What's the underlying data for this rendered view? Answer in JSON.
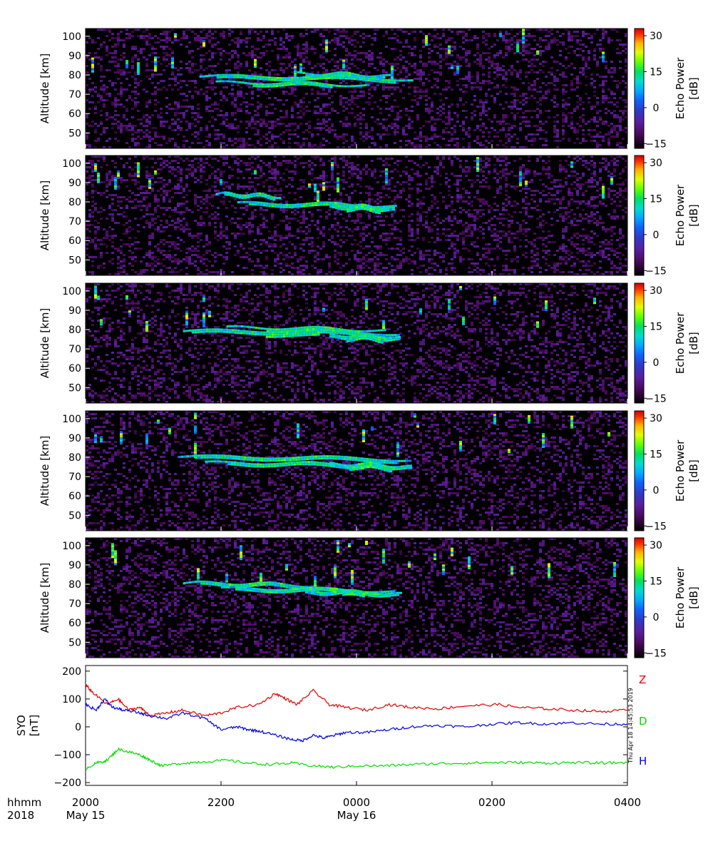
{
  "chart_data": [
    {
      "type": "heatmap",
      "panel": 1,
      "ylabel": "Altitude [km]",
      "ylim": [
        42,
        104
      ],
      "yticks": [
        50,
        60,
        70,
        80,
        90,
        100
      ],
      "colorbar": {
        "label_line1": "Echo Power",
        "label_line2": "[dB]",
        "range": [
          -17,
          33
        ],
        "ticks": [
          -15,
          0,
          15,
          30
        ]
      },
      "echo_layers": [
        {
          "start": 0.21,
          "end": 0.6,
          "altitude": 79,
          "thickness": 2.0
        },
        {
          "start": 0.24,
          "end": 0.52,
          "altitude": 76,
          "thickness": 1.5
        },
        {
          "start": 0.39,
          "end": 0.56,
          "altitude": 80.5,
          "thickness": 2.0
        }
      ]
    },
    {
      "type": "heatmap",
      "panel": 2,
      "ylabel": "Altitude [km]",
      "ylim": [
        42,
        104
      ],
      "yticks": [
        50,
        60,
        70,
        80,
        90,
        100
      ],
      "colorbar": {
        "label_line1": "Echo Power",
        "label_line2": "[dB]",
        "range": [
          -17,
          33
        ],
        "ticks": [
          -15,
          0,
          15,
          30
        ]
      },
      "echo_layers": [
        {
          "start": 0.24,
          "end": 0.36,
          "altitude": 84,
          "thickness": 1.8
        },
        {
          "start": 0.28,
          "end": 0.57,
          "altitude": 79,
          "thickness": 2.0
        },
        {
          "start": 0.45,
          "end": 0.57,
          "altitude": 77.5,
          "thickness": 2.5
        }
      ]
    },
    {
      "type": "heatmap",
      "panel": 3,
      "ylabel": "Altitude [km]",
      "ylim": [
        42,
        104
      ],
      "yticks": [
        50,
        60,
        70,
        80,
        90,
        100
      ],
      "colorbar": {
        "label_line1": "Echo Power",
        "label_line2": "[dB]",
        "range": [
          -17,
          33
        ],
        "ticks": [
          -15,
          0,
          15,
          30
        ]
      },
      "echo_layers": [
        {
          "start": 0.18,
          "end": 0.58,
          "altitude": 79,
          "thickness": 2.2
        },
        {
          "start": 0.26,
          "end": 0.55,
          "altitude": 81,
          "thickness": 1.5
        },
        {
          "start": 0.45,
          "end": 0.58,
          "altitude": 76.5,
          "thickness": 2.5
        }
      ]
    },
    {
      "type": "heatmap",
      "panel": 4,
      "ylabel": "Altitude [km]",
      "ylim": [
        42,
        104
      ],
      "yticks": [
        50,
        60,
        70,
        80,
        90,
        100
      ],
      "colorbar": {
        "label_line1": "Echo Power",
        "label_line2": "[dB]",
        "range": [
          -17,
          33
        ],
        "ticks": [
          -15,
          0,
          15,
          30
        ]
      },
      "echo_layers": [
        {
          "start": 0.17,
          "end": 0.6,
          "altitude": 80,
          "thickness": 2.0
        },
        {
          "start": 0.22,
          "end": 0.55,
          "altitude": 77,
          "thickness": 1.8
        },
        {
          "start": 0.45,
          "end": 0.6,
          "altitude": 76,
          "thickness": 2.5
        }
      ]
    },
    {
      "type": "heatmap",
      "panel": 5,
      "ylabel": "Altitude [km]",
      "ylim": [
        42,
        104
      ],
      "yticks": [
        50,
        60,
        70,
        80,
        90,
        100
      ],
      "colorbar": {
        "label_line1": "Echo Power",
        "label_line2": "[dB]",
        "range": [
          -17,
          33
        ],
        "ticks": [
          -15,
          0,
          15,
          30
        ]
      },
      "echo_layers": [
        {
          "start": 0.18,
          "end": 0.42,
          "altitude": 80.5,
          "thickness": 1.8
        },
        {
          "start": 0.25,
          "end": 0.57,
          "altitude": 77.5,
          "thickness": 2.0
        },
        {
          "start": 0.4,
          "end": 0.58,
          "altitude": 76,
          "thickness": 2.2
        }
      ]
    },
    {
      "type": "line",
      "ylabel_line1": "SYO",
      "ylabel_line2": "[nT]",
      "ylim": [
        -210,
        220
      ],
      "yticks": [
        -200,
        -100,
        0,
        100,
        200
      ],
      "timestamp": "Thu Apr 18 14:45:53 2019",
      "series": [
        {
          "name": "Z",
          "color": "#e00000",
          "points": [
            [
              0,
              150
            ],
            [
              0.015,
              120
            ],
            [
              0.04,
              80
            ],
            [
              0.06,
              100
            ],
            [
              0.08,
              60
            ],
            [
              0.1,
              70
            ],
            [
              0.12,
              40
            ],
            [
              0.15,
              50
            ],
            [
              0.18,
              60
            ],
            [
              0.22,
              40
            ],
            [
              0.25,
              50
            ],
            [
              0.28,
              70
            ],
            [
              0.32,
              80
            ],
            [
              0.35,
              120
            ],
            [
              0.37,
              100
            ],
            [
              0.39,
              80
            ],
            [
              0.42,
              130
            ],
            [
              0.45,
              80
            ],
            [
              0.48,
              70
            ],
            [
              0.52,
              60
            ],
            [
              0.56,
              80
            ],
            [
              0.6,
              70
            ],
            [
              0.65,
              65
            ],
            [
              0.7,
              75
            ],
            [
              0.76,
              80
            ],
            [
              0.8,
              70
            ],
            [
              0.85,
              65
            ],
            [
              0.9,
              60
            ],
            [
              0.95,
              55
            ],
            [
              1.0,
              60
            ]
          ]
        },
        {
          "name": "D",
          "color": "#00dd00",
          "points": [
            [
              0,
              -150
            ],
            [
              0.02,
              -130
            ],
            [
              0.04,
              -120
            ],
            [
              0.06,
              -80
            ],
            [
              0.08,
              -90
            ],
            [
              0.1,
              -100
            ],
            [
              0.12,
              -120
            ],
            [
              0.14,
              -140
            ],
            [
              0.18,
              -130
            ],
            [
              0.22,
              -125
            ],
            [
              0.26,
              -120
            ],
            [
              0.3,
              -130
            ],
            [
              0.34,
              -135
            ],
            [
              0.38,
              -130
            ],
            [
              0.42,
              -140
            ],
            [
              0.46,
              -145
            ],
            [
              0.5,
              -140
            ],
            [
              0.55,
              -140
            ],
            [
              0.6,
              -135
            ],
            [
              0.65,
              -132
            ],
            [
              0.7,
              -130
            ],
            [
              0.75,
              -128
            ],
            [
              0.8,
              -128
            ],
            [
              0.85,
              -130
            ],
            [
              0.9,
              -128
            ],
            [
              0.95,
              -130
            ],
            [
              1.0,
              -128
            ]
          ]
        },
        {
          "name": "H",
          "color": "#0000dd",
          "points": [
            [
              0,
              80
            ],
            [
              0.02,
              60
            ],
            [
              0.035,
              100
            ],
            [
              0.05,
              70
            ],
            [
              0.07,
              60
            ],
            [
              0.1,
              50
            ],
            [
              0.12,
              40
            ],
            [
              0.15,
              30
            ],
            [
              0.18,
              50
            ],
            [
              0.22,
              30
            ],
            [
              0.25,
              -10
            ],
            [
              0.28,
              0
            ],
            [
              0.3,
              -10
            ],
            [
              0.32,
              -15
            ],
            [
              0.35,
              -30
            ],
            [
              0.38,
              -45
            ],
            [
              0.4,
              -50
            ],
            [
              0.42,
              -30
            ],
            [
              0.44,
              -40
            ],
            [
              0.46,
              -30
            ],
            [
              0.48,
              -20
            ],
            [
              0.52,
              -20
            ],
            [
              0.56,
              -10
            ],
            [
              0.6,
              0
            ],
            [
              0.65,
              5
            ],
            [
              0.7,
              0
            ],
            [
              0.75,
              10
            ],
            [
              0.8,
              15
            ],
            [
              0.85,
              10
            ],
            [
              0.9,
              15
            ],
            [
              0.95,
              10
            ],
            [
              1.0,
              10
            ]
          ]
        }
      ]
    }
  ],
  "x_axis": {
    "row_labels": [
      "hhmm",
      "2018"
    ],
    "ticks": [
      {
        "frac": 0.0,
        "time": "2000",
        "date": "May 15"
      },
      {
        "frac": 0.25,
        "time": "2200",
        "date": ""
      },
      {
        "frac": 0.5,
        "time": "0000",
        "date": "May 16"
      },
      {
        "frac": 0.75,
        "time": "0200",
        "date": ""
      },
      {
        "frac": 1.0,
        "time": "0400",
        "date": ""
      }
    ]
  }
}
